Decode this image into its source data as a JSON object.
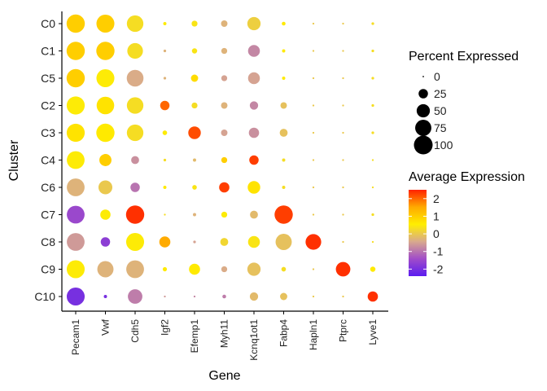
{
  "chart_data": {
    "type": "dot_plot",
    "xlabel": "Gene",
    "ylabel": "Cluster",
    "genes": [
      "Pecam1",
      "Vwf",
      "Cdh5",
      "Igf2",
      "Efemp1",
      "Myh11",
      "Kcnq1ot1",
      "Fabp4",
      "Hapln1",
      "Ptprc",
      "Lyve1"
    ],
    "clusters": [
      "C0",
      "C1",
      "C5",
      "C2",
      "C3",
      "C4",
      "C6",
      "C7",
      "C8",
      "C9",
      "C10"
    ],
    "percent_expressed": [
      [
        95,
        92,
        78,
        3,
        10,
        12,
        50,
        4,
        1,
        1,
        2
      ],
      [
        95,
        95,
        70,
        2,
        8,
        10,
        40,
        3,
        1,
        1,
        2
      ],
      [
        95,
        92,
        80,
        2,
        15,
        10,
        40,
        3,
        1,
        1,
        2
      ],
      [
        93,
        88,
        78,
        25,
        10,
        12,
        20,
        12,
        1,
        1,
        2
      ],
      [
        93,
        95,
        78,
        6,
        45,
        12,
        30,
        18,
        1,
        1,
        2
      ],
      [
        90,
        42,
        18,
        2,
        3,
        10,
        25,
        3,
        1,
        1,
        1
      ],
      [
        90,
        55,
        25,
        3,
        6,
        30,
        45,
        3,
        1,
        1,
        1
      ],
      [
        90,
        30,
        95,
        1,
        3,
        10,
        18,
        95,
        1,
        1,
        2
      ],
      [
        90,
        25,
        92,
        35,
        2,
        18,
        40,
        75,
        70,
        1,
        1
      ],
      [
        92,
        75,
        90,
        5,
        35,
        10,
        50,
        6,
        1,
        60,
        8
      ],
      [
        92,
        3,
        60,
        1,
        1,
        4,
        20,
        15,
        1,
        1,
        30
      ]
    ],
    "average_expression": [
      [
        1.0,
        1.0,
        0.3,
        0.5,
        0.4,
        -0.3,
        0.1,
        0.6,
        0,
        0,
        0.3
      ],
      [
        1.0,
        1.0,
        0.3,
        -0.3,
        0.4,
        -0.3,
        -0.8,
        0.6,
        0,
        0,
        0.3
      ],
      [
        1.0,
        0.5,
        -0.4,
        -0.3,
        0.8,
        -0.5,
        -0.5,
        0.6,
        0,
        0,
        0.3
      ],
      [
        0.5,
        0.7,
        0.3,
        2.0,
        0.3,
        -0.3,
        -0.8,
        -0.1,
        0,
        0,
        0.3
      ],
      [
        0.7,
        0.6,
        0.3,
        0.5,
        2.2,
        -0.5,
        -0.7,
        -0.1,
        0,
        0,
        0.3
      ],
      [
        0.5,
        1.0,
        -0.7,
        0.3,
        -0.2,
        1.0,
        2.3,
        0.3,
        0,
        0,
        0.3
      ],
      [
        -0.3,
        0.0,
        -1.0,
        0.6,
        0.4,
        2.3,
        0.7,
        0.3,
        0,
        0,
        0.3
      ],
      [
        -1.5,
        0.5,
        2.4,
        0.3,
        -0.3,
        0.5,
        -0.2,
        2.3,
        0,
        0,
        0.3
      ],
      [
        -0.6,
        -1.7,
        0.5,
        1.5,
        -0.5,
        0.2,
        0.4,
        -0.1,
        2.4,
        0,
        0.3
      ],
      [
        0.5,
        -0.3,
        -0.3,
        0.6,
        0.6,
        -0.4,
        -0.1,
        0.3,
        0,
        2.4,
        0.6
      ],
      [
        -2.0,
        -2.0,
        -0.9,
        -0.6,
        -0.8,
        -0.9,
        -0.2,
        -0.1,
        0,
        0,
        2.4
      ]
    ],
    "size_legend": {
      "title": "Percent Expressed",
      "labels": [
        "0",
        "25",
        "50",
        "75",
        "100"
      ],
      "values": [
        0,
        25,
        50,
        75,
        100
      ]
    },
    "color_legend": {
      "title": "Average Expression",
      "labels": [
        "2",
        "1",
        "0",
        "-1",
        "-2"
      ],
      "values": [
        2,
        1,
        0,
        -1,
        -2
      ],
      "range": [
        -2.4,
        2.5
      ],
      "colors": [
        "#5b1cf0",
        "#a04cc9",
        "#d8a98e",
        "#ffee00",
        "#ffaa00",
        "#ff2200"
      ]
    }
  }
}
